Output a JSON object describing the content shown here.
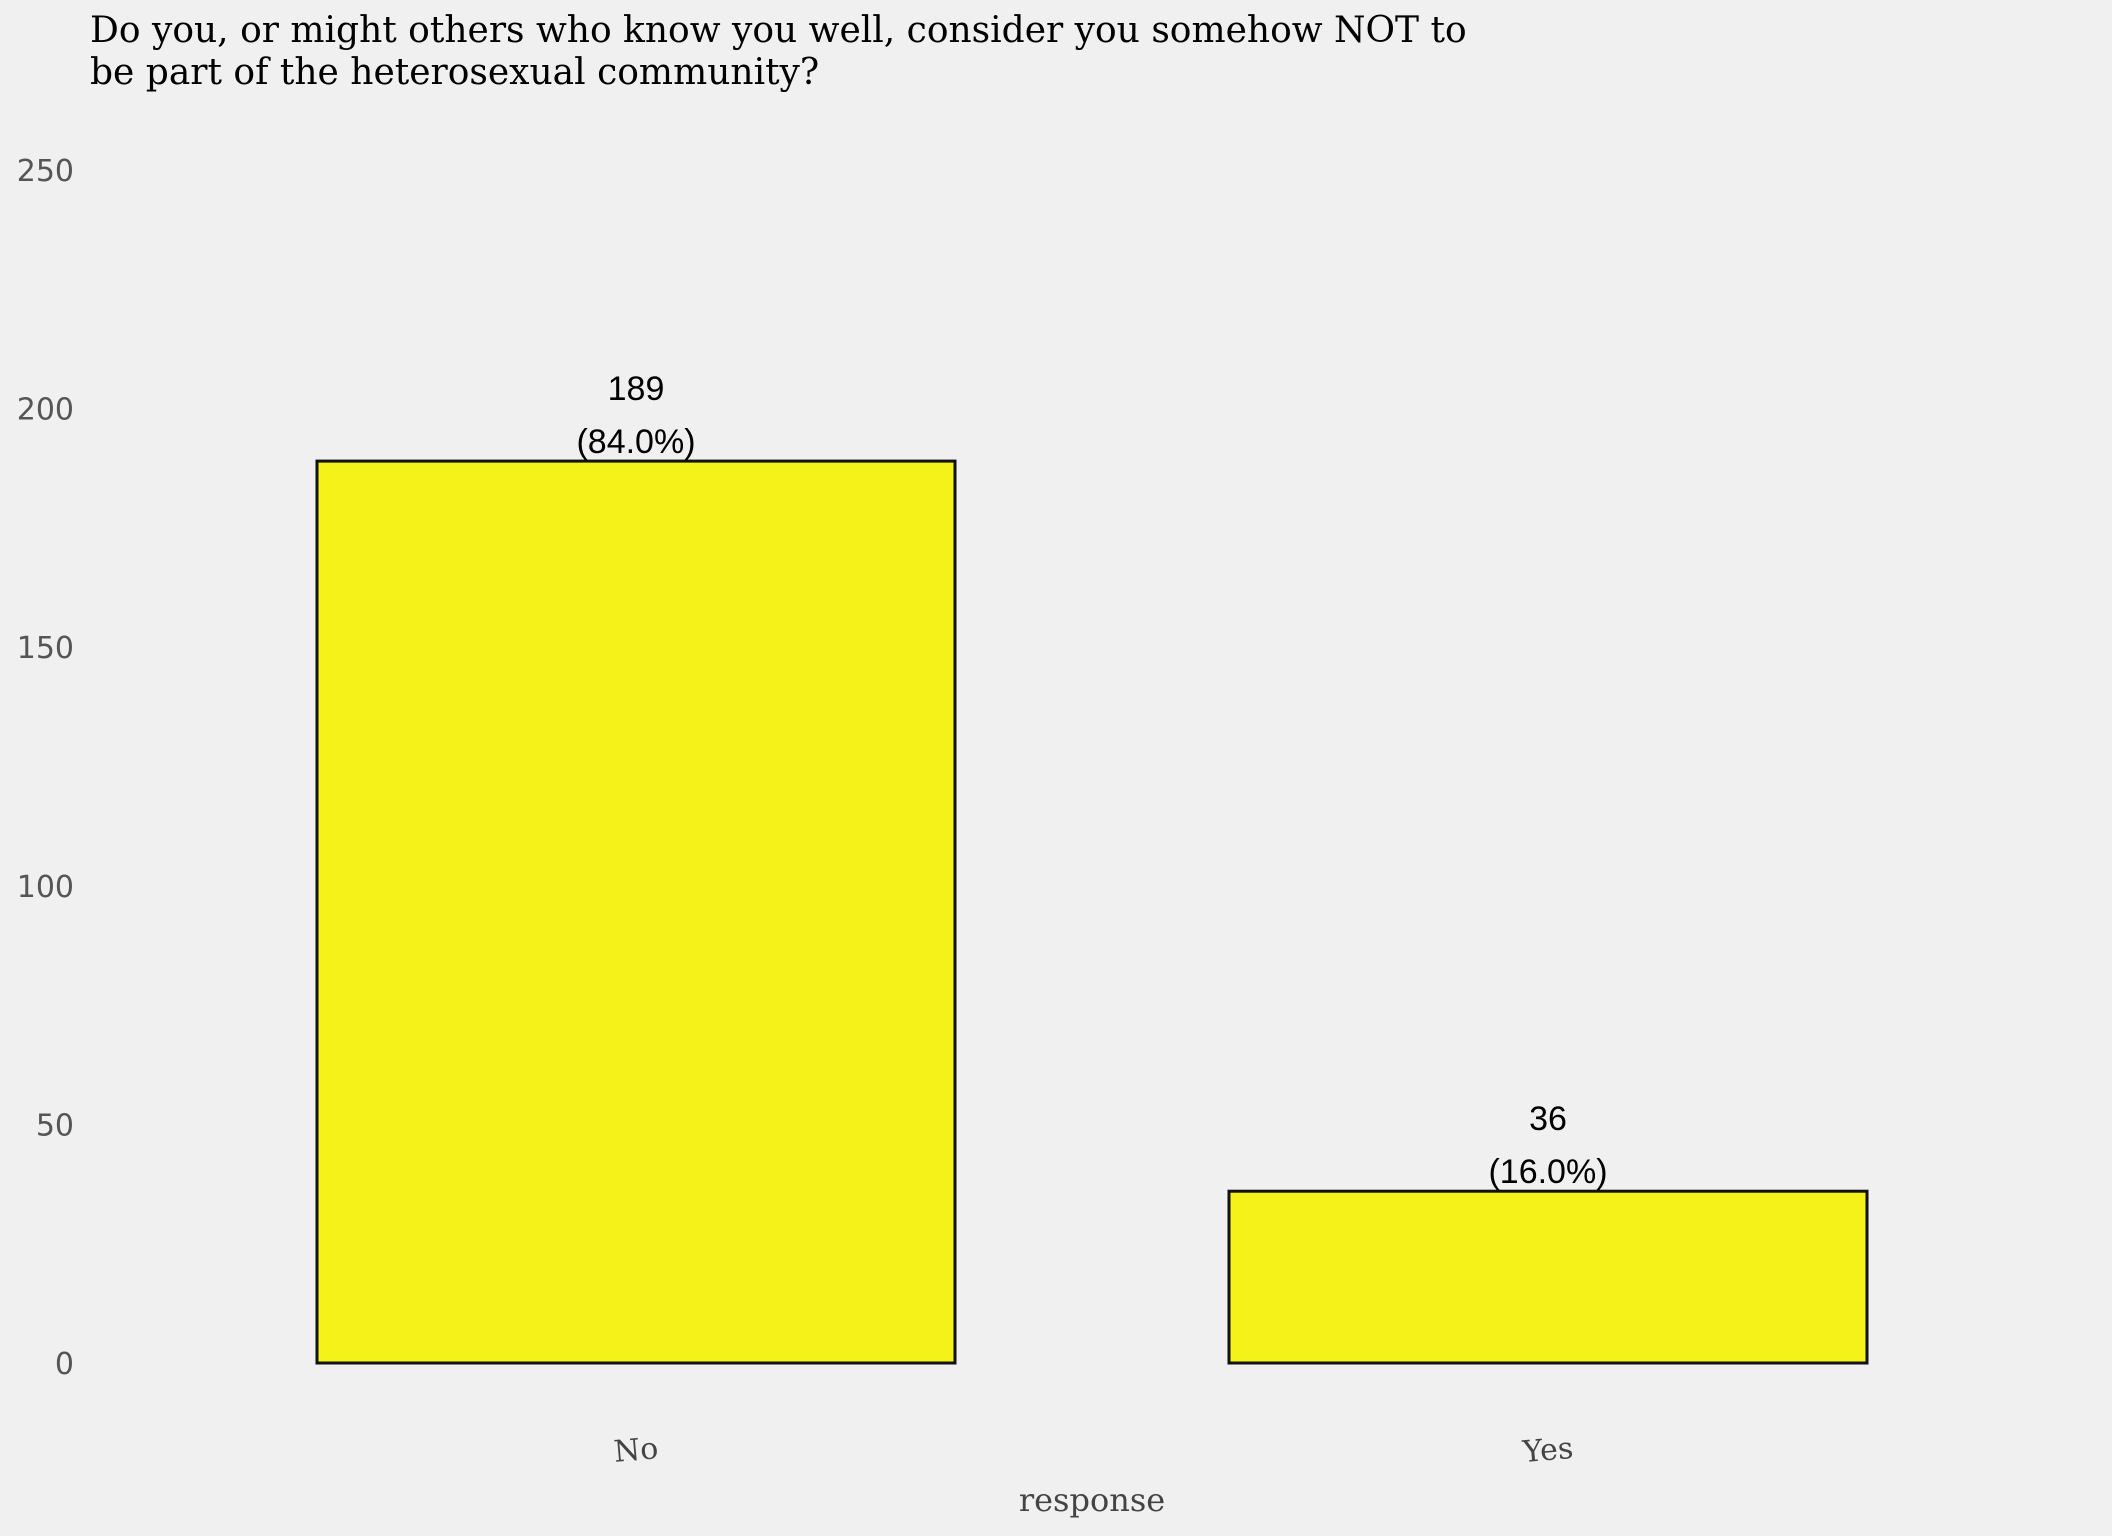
{
  "chart_data": {
    "type": "bar",
    "title_lines": [
      "Do you, or might others who know you well, consider you somehow NOT to",
      "be part of the heterosexual community?"
    ],
    "xlabel": "response",
    "ylabel": "",
    "categories": [
      "No",
      "Yes"
    ],
    "values": [
      189,
      36
    ],
    "data_labels": [
      {
        "count": "189",
        "percent": "(84.0%)"
      },
      {
        "count": "36",
        "percent": "(16.0%)"
      }
    ],
    "ylim": [
      0,
      250
    ],
    "yticks": [
      0,
      50,
      100,
      150,
      200,
      250
    ],
    "grid": false,
    "legend": "none",
    "colors": {
      "bar_fill": "#f5f219",
      "bar_stroke": "#111111",
      "background": "#f0f0f0"
    }
  }
}
